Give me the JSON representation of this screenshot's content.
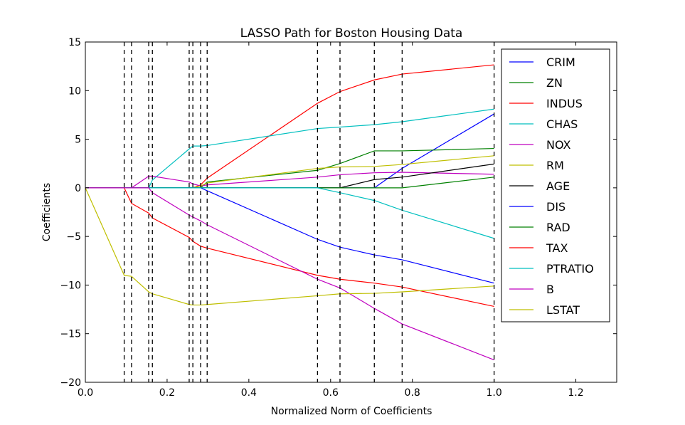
{
  "chart_data": {
    "type": "line",
    "title": "LASSO Path for Boston Housing Data",
    "xlabel": "Normalized Norm of Coefficients",
    "ylabel": "Coefficients",
    "xlim": [
      0.0,
      1.3
    ],
    "ylim": [
      -20,
      15
    ],
    "xticks": [
      0.0,
      0.2,
      0.4,
      0.6,
      0.8,
      1.0,
      1.2
    ],
    "xtick_labels": [
      "0.0",
      "0.2",
      "0.4",
      "0.6",
      "0.8",
      "1.0",
      "1.2"
    ],
    "yticks": [
      -20,
      -15,
      -10,
      -5,
      0,
      5,
      10,
      15
    ],
    "ytick_labels": [
      "−20",
      "−15",
      "−10",
      "−5",
      "0",
      "5",
      "10",
      "15"
    ],
    "grid": false,
    "legend": "right-of-top",
    "x": [
      0.0,
      0.095,
      0.113,
      0.155,
      0.164,
      0.254,
      0.263,
      0.282,
      0.298,
      0.568,
      0.623,
      0.707,
      0.775,
      1.0
    ],
    "vlines": [
      0.095,
      0.113,
      0.155,
      0.164,
      0.254,
      0.263,
      0.282,
      0.298,
      0.568,
      0.623,
      0.707,
      0.775,
      1.0
    ],
    "series": [
      {
        "name": "CRIM",
        "color": "#0000ff",
        "values": [
          0,
          0,
          0,
          0,
          0,
          0,
          0,
          0,
          0,
          0,
          0,
          0,
          2.0,
          7.6
        ]
      },
      {
        "name": "ZN",
        "color": "#008000",
        "values": [
          0,
          0,
          0,
          0,
          0,
          0,
          0,
          0,
          0.6,
          1.8,
          2.5,
          3.8,
          3.8,
          4.05
        ]
      },
      {
        "name": "INDUS",
        "color": "#ff0000",
        "values": [
          0,
          0,
          0,
          0,
          0,
          0,
          0,
          0.3,
          1.0,
          8.7,
          9.9,
          11.1,
          11.7,
          12.65
        ]
      },
      {
        "name": "CHAS",
        "color": "#00bfbf",
        "values": [
          0,
          0,
          0,
          0,
          0.8,
          4.0,
          4.3,
          4.3,
          4.35,
          6.1,
          6.25,
          6.5,
          6.8,
          8.1
        ]
      },
      {
        "name": "NOX",
        "color": "#bf00bf",
        "values": [
          0,
          0,
          0,
          1.2,
          1.2,
          0.6,
          0.4,
          0.2,
          0.3,
          1.1,
          1.35,
          1.55,
          1.6,
          1.4
        ]
      },
      {
        "name": "RM",
        "color": "#bfbf00",
        "values": [
          0,
          0,
          0,
          0,
          0,
          0,
          0,
          0.2,
          0.5,
          2.0,
          2.15,
          2.2,
          2.4,
          3.3
        ]
      },
      {
        "name": "AGE",
        "color": "#000000",
        "values": [
          0,
          0,
          0,
          0,
          0,
          0,
          0,
          0,
          0,
          0,
          0,
          0.85,
          1.1,
          2.45
        ]
      },
      {
        "name": "DIS",
        "color": "#0000ff",
        "values": [
          0,
          0,
          0,
          0,
          0,
          0,
          0,
          0,
          -0.3,
          -5.3,
          -6.1,
          -6.9,
          -7.4,
          -9.8
        ]
      },
      {
        "name": "RAD",
        "color": "#008000",
        "values": [
          0,
          0,
          0,
          0,
          0,
          0,
          0,
          0,
          0,
          0,
          0,
          0,
          0,
          1.1
        ]
      },
      {
        "name": "TAX",
        "color": "#ff0000",
        "values": [
          0,
          0,
          -1.6,
          -2.6,
          -3.1,
          -5.1,
          -5.5,
          -6.0,
          -6.2,
          -9.0,
          -9.4,
          -9.8,
          -10.2,
          -12.2
        ]
      },
      {
        "name": "PTRATIO",
        "color": "#00bfbf",
        "values": [
          0,
          0,
          0,
          0,
          0,
          0,
          0,
          0,
          0,
          0,
          -0.5,
          -1.3,
          -2.3,
          -5.2
        ]
      },
      {
        "name": "B",
        "color": "#bf00bf",
        "values": [
          0,
          0,
          0,
          0,
          -0.5,
          -2.8,
          -3.0,
          -3.4,
          -3.8,
          -9.4,
          -10.3,
          -12.4,
          -14.0,
          -17.7
        ]
      },
      {
        "name": "LSTAT",
        "color": "#bfbf00",
        "values": [
          0,
          -9.0,
          -9.1,
          -10.7,
          -10.9,
          -12.0,
          -12.05,
          -12.05,
          -12.0,
          -11.1,
          -10.9,
          -10.85,
          -10.7,
          -10.1
        ]
      }
    ]
  }
}
